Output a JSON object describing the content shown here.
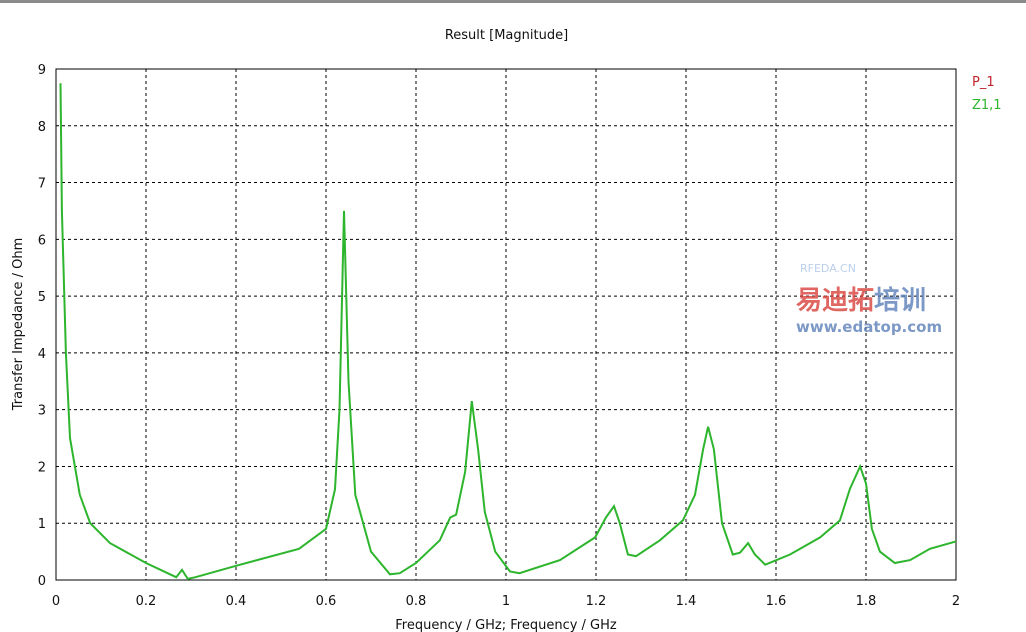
{
  "chart_data": {
    "type": "line",
    "title": "Result [Magnitude]",
    "xlabel": "Frequency / GHz; Frequency / GHz",
    "ylabel": "Transfer Impedance / Ohm",
    "xlim": [
      0,
      2
    ],
    "ylim": [
      0,
      9
    ],
    "grid": true,
    "legend_placement": "top-right",
    "xticks": [
      "0",
      "0.2",
      "0.4",
      "0.6",
      "0.8",
      "1",
      "1.2",
      "1.4",
      "1.6",
      "1.8",
      "2"
    ],
    "yticks": [
      "0",
      "1",
      "2",
      "3",
      "4",
      "5",
      "6",
      "7",
      "8",
      "9"
    ],
    "legend": [
      {
        "name": "P_1",
        "color": "#c0262b"
      },
      {
        "name": "Z1,1",
        "color": "#2db52d"
      }
    ],
    "series": [
      {
        "name": "Z1,1",
        "color": "#2db52d",
        "x": [
          0.01,
          0.013,
          0.022,
          0.031,
          0.053,
          0.076,
          0.12,
          0.2,
          0.267,
          0.28,
          0.293,
          0.31,
          0.4,
          0.54,
          0.6,
          0.62,
          0.63,
          0.64,
          0.65,
          0.665,
          0.7,
          0.742,
          0.764,
          0.8,
          0.853,
          0.876,
          0.889,
          0.909,
          0.924,
          0.938,
          0.953,
          0.976,
          1.009,
          1.03,
          1.12,
          1.198,
          1.222,
          1.24,
          1.253,
          1.271,
          1.289,
          1.342,
          1.393,
          1.42,
          1.438,
          1.449,
          1.462,
          1.48,
          1.504,
          1.52,
          1.538,
          1.553,
          1.576,
          1.631,
          1.698,
          1.742,
          1.764,
          1.787,
          1.8,
          1.813,
          1.831,
          1.864,
          1.898,
          1.942,
          2.0
        ],
        "y": [
          8.75,
          6.5,
          4.0,
          2.5,
          1.5,
          1.0,
          0.65,
          0.3,
          0.05,
          0.18,
          0.02,
          0.05,
          0.25,
          0.55,
          0.9,
          1.6,
          3.0,
          6.5,
          3.5,
          1.5,
          0.5,
          0.1,
          0.12,
          0.3,
          0.7,
          1.1,
          1.15,
          1.9,
          3.15,
          2.3,
          1.2,
          0.5,
          0.15,
          0.12,
          0.35,
          0.75,
          1.1,
          1.3,
          1.0,
          0.45,
          0.42,
          0.7,
          1.05,
          1.5,
          2.3,
          2.7,
          2.3,
          1.0,
          0.45,
          0.48,
          0.65,
          0.45,
          0.27,
          0.45,
          0.75,
          1.05,
          1.6,
          2.0,
          1.7,
          0.9,
          0.5,
          0.3,
          0.35,
          0.55,
          0.68
        ]
      }
    ]
  },
  "watermark": {
    "cn": "易迪拓培训",
    "url": "www.edatop.com",
    "site": "RFEDA.CN"
  }
}
